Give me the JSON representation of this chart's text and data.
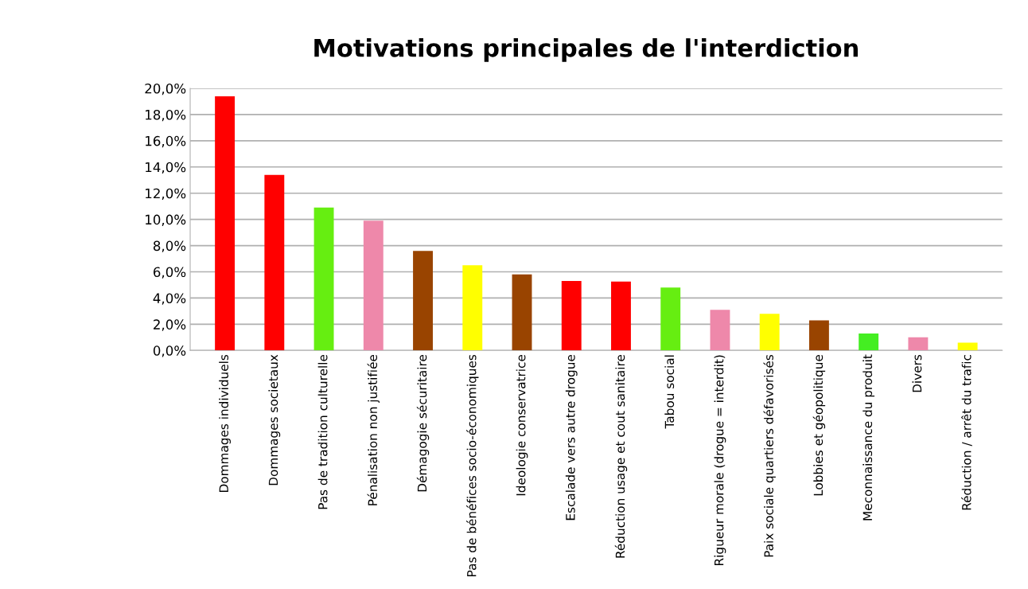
{
  "chart_data": {
    "type": "bar",
    "title": "Motivations principales de l'interdiction",
    "categories": [
      "Dommages individuels",
      "Dommages societaux",
      "Pas de tradition culturelle",
      "Pénalisation non justifiée",
      "Démagogie sécuritaire",
      "Pas de bénéfices socio-économiques",
      "Ideologie conservatrice",
      "Escalade vers autre drogue",
      "Réduction usage et cout sanitaire",
      "Tabou social",
      "Rigueur morale (drogue = interdit)",
      "Paix sociale quartiers défavorisés",
      "Lobbies et géopolitique",
      "Meconnaissance du produit",
      "Divers",
      "Réduction / arrêt du trafic"
    ],
    "values": [
      19.4,
      13.4,
      10.9,
      9.9,
      7.6,
      6.5,
      5.8,
      5.3,
      5.25,
      4.8,
      3.1,
      2.8,
      2.3,
      1.3,
      1.0,
      0.6
    ],
    "colors": [
      "#ff0000",
      "#ff0000",
      "#66ee11",
      "#ee88aa",
      "#994400",
      "#ffff00",
      "#994400",
      "#ff0000",
      "#ff0000",
      "#66ee11",
      "#ee88aa",
      "#ffff00",
      "#994400",
      "#44ee22",
      "#ee88aa",
      "#ffff00"
    ],
    "ylim": [
      0,
      20
    ],
    "yticks": [
      {
        "value": 0,
        "label": "0,0%"
      },
      {
        "value": 2,
        "label": "2,0%"
      },
      {
        "value": 4,
        "label": "4,0%"
      },
      {
        "value": 6,
        "label": "6,0%"
      },
      {
        "value": 8,
        "label": "8,0%"
      },
      {
        "value": 10,
        "label": "10,0%"
      },
      {
        "value": 12,
        "label": "12,0%"
      },
      {
        "value": 14,
        "label": "14,0%"
      },
      {
        "value": 16,
        "label": "16,0%"
      },
      {
        "value": 18,
        "label": "18,0%"
      },
      {
        "value": 20,
        "label": "20,0%"
      }
    ],
    "grid": "y"
  }
}
